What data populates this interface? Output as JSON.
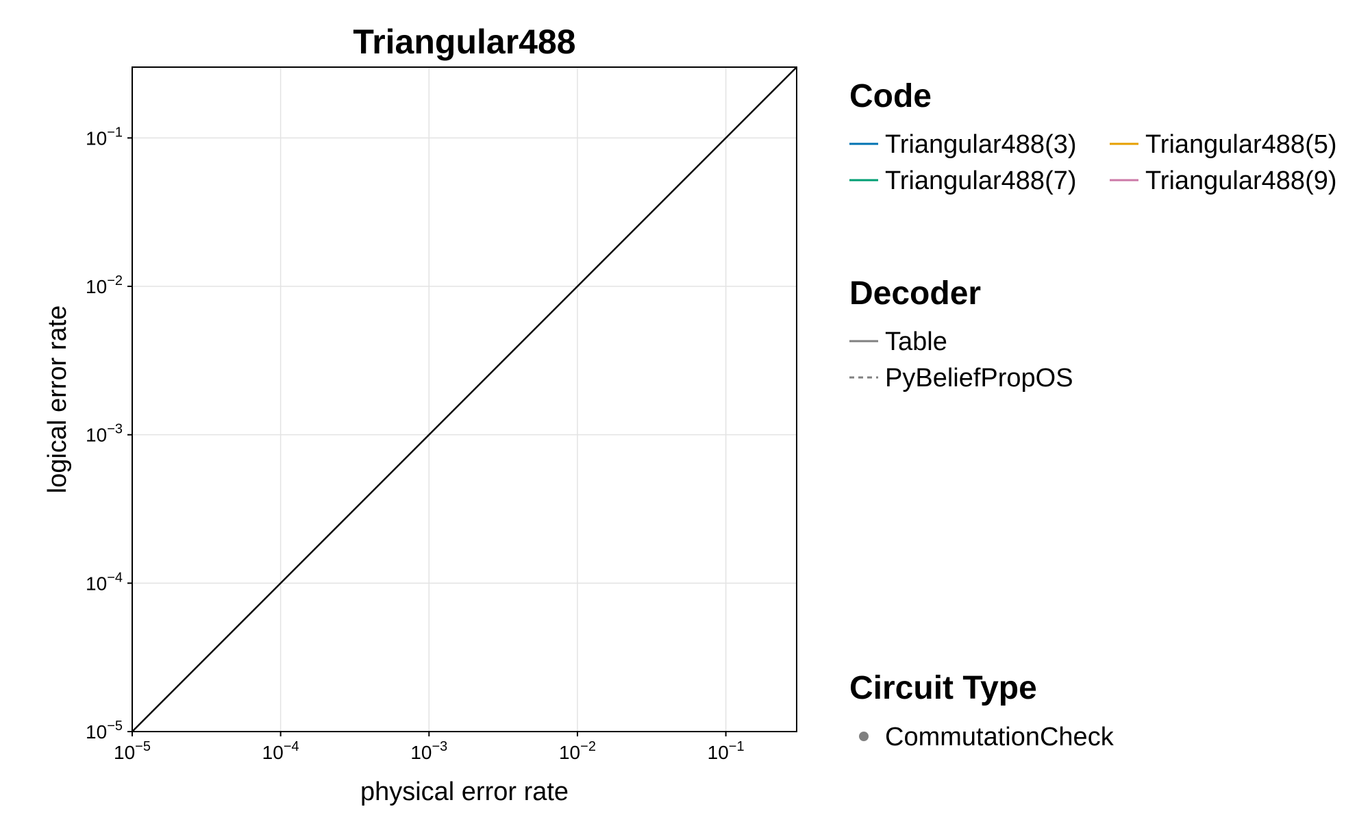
{
  "chart_data": {
    "type": "line",
    "title": "Triangular488",
    "xlabel": "physical error rate",
    "ylabel": "logical error rate",
    "x_scale": "log10",
    "y_scale": "log10",
    "xlim": [
      1e-05,
      0.3
    ],
    "ylim": [
      1e-05,
      0.3
    ],
    "grid": true,
    "x_ticks": [
      {
        "base": "10",
        "exp": "−5"
      },
      {
        "base": "10",
        "exp": "−4"
      },
      {
        "base": "10",
        "exp": "−3"
      },
      {
        "base": "10",
        "exp": "−2"
      },
      {
        "base": "10",
        "exp": "−1"
      }
    ],
    "y_ticks": [
      {
        "base": "10",
        "exp": "−5"
      },
      {
        "base": "10",
        "exp": "−4"
      },
      {
        "base": "10",
        "exp": "−3"
      },
      {
        "base": "10",
        "exp": "−2"
      },
      {
        "base": "10",
        "exp": "−1"
      }
    ],
    "tick_values": [
      1e-05,
      0.0001,
      0.001,
      0.01,
      0.1
    ],
    "reference_line": {
      "x": [
        1e-05,
        0.3
      ],
      "y": [
        1e-05,
        0.3
      ],
      "color": "#000000"
    },
    "legend_placement": "right",
    "legends": [
      {
        "title": "Code",
        "entries": [
          {
            "label": "Triangular488(3)",
            "color": "#0072b2",
            "style": "solid"
          },
          {
            "label": "Triangular488(5)",
            "color": "#e69f00",
            "style": "solid"
          },
          {
            "label": "Triangular488(7)",
            "color": "#009e73",
            "style": "solid"
          },
          {
            "label": "Triangular488(9)",
            "color": "#cc79a7",
            "style": "solid"
          }
        ]
      },
      {
        "title": "Decoder",
        "entries": [
          {
            "label": "Table",
            "color": "#808080",
            "style": "solid"
          },
          {
            "label": "PyBeliefPropOS",
            "color": "#808080",
            "style": "dashed"
          }
        ]
      },
      {
        "title": "Circuit Type",
        "entries": [
          {
            "label": "CommutationCheck",
            "color": "#808080",
            "style": "marker"
          }
        ]
      }
    ]
  }
}
